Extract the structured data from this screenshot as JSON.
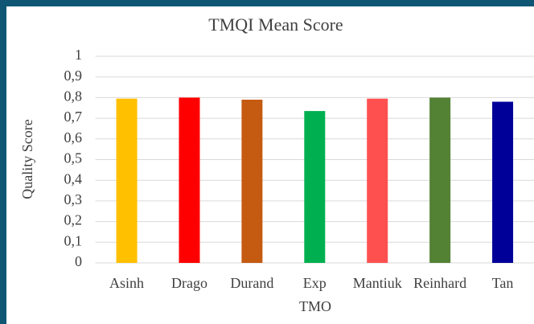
{
  "chart_data": {
    "type": "bar",
    "title": "TMQI Mean Score",
    "x_label": "TMO",
    "y_label": "Quality Score",
    "categories": [
      "Asinh",
      "Drago",
      "Durand",
      "Exp",
      "Mantiuk",
      "Reinhard",
      "Tan"
    ],
    "values": [
      0.795,
      0.8,
      0.79,
      0.735,
      0.795,
      0.8,
      0.78
    ],
    "colors": [
      "#ffc000",
      "#ff0000",
      "#c55a11",
      "#00b050",
      "#ff5050",
      "#548235",
      "#000099"
    ],
    "ylim": [
      0,
      1
    ],
    "yticks": [
      0,
      {
        "value": 0.1,
        "label": "0,1"
      },
      {
        "value": 0.2,
        "label": "0,2"
      },
      {
        "value": 0.3,
        "label": "0,3"
      },
      {
        "value": 0.4,
        "label": "0,4"
      },
      {
        "value": 0.5,
        "label": "0,5"
      },
      {
        "value": 0.6,
        "label": "0,6"
      },
      {
        "value": 0.7,
        "label": "0,7"
      },
      {
        "value": 0.8,
        "label": "0,8"
      },
      {
        "value": 0.9,
        "label": "0,9"
      },
      1
    ],
    "grid": true
  }
}
